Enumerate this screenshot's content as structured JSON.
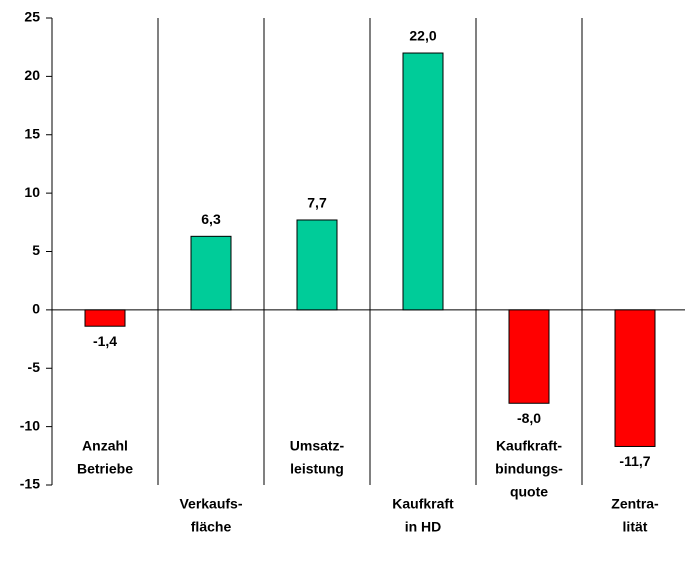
{
  "chart_data": {
    "type": "bar",
    "categories": [
      [
        "Anzahl",
        "Betriebe"
      ],
      [
        "Verkaufs-",
        "fläche"
      ],
      [
        "Umsatz-",
        "leistung"
      ],
      [
        "Kaufkraft",
        "in HD"
      ],
      [
        "Kaufkraft-",
        "bindungs-",
        "quote"
      ],
      [
        "Zentra-",
        "lität"
      ]
    ],
    "values": [
      -1.4,
      6.3,
      7.7,
      22.0,
      -8.0,
      -11.7
    ],
    "value_labels": [
      "-1,4",
      "6,3",
      "7,7",
      "22,0",
      "-8,0",
      "-11,7"
    ],
    "colors": [
      "#ff0000",
      "#00cc99",
      "#00cc99",
      "#00cc99",
      "#ff0000",
      "#ff0000"
    ],
    "ylim": [
      -15,
      25
    ],
    "yticks": [
      -15,
      -10,
      -5,
      0,
      5,
      10,
      15,
      20,
      25
    ],
    "grid": false
  }
}
